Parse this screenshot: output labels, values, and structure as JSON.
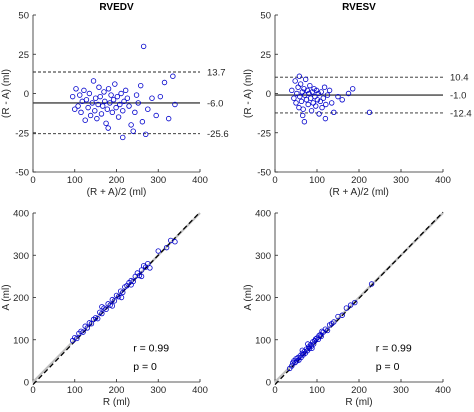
{
  "colors": {
    "points": "#0000cc",
    "axis": "#262626",
    "mean_line": "#404040",
    "identity_line": "#c0c0c0",
    "fit_line": "#000000"
  },
  "chart_data": [
    {
      "id": "rvedv-bland-altman",
      "type": "scatter",
      "title": "RVEDV",
      "xlabel": "(R + A)/2 (ml)",
      "ylabel": "(R - A) (ml)",
      "xlim": [
        0,
        400
      ],
      "ylim": [
        -50,
        50
      ],
      "xticks": [
        0,
        100,
        200,
        300,
        400
      ],
      "yticks": [
        -50,
        -25,
        0,
        25,
        50
      ],
      "hlines": [
        {
          "value": 13.7,
          "label": "13.7",
          "style": "dashed"
        },
        {
          "value": -6.0,
          "label": "-6.0",
          "style": "solid"
        },
        {
          "value": -25.6,
          "label": "-25.6",
          "style": "dashed"
        }
      ],
      "points": [
        [
          95,
          -2
        ],
        [
          100,
          -10
        ],
        [
          103,
          3
        ],
        [
          108,
          -8
        ],
        [
          112,
          -1
        ],
        [
          115,
          -12
        ],
        [
          118,
          -5
        ],
        [
          122,
          2
        ],
        [
          125,
          -17
        ],
        [
          128,
          -4
        ],
        [
          132,
          -9
        ],
        [
          135,
          0
        ],
        [
          138,
          -14
        ],
        [
          142,
          -6
        ],
        [
          145,
          8
        ],
        [
          148,
          -11
        ],
        [
          150,
          -3
        ],
        [
          153,
          -16
        ],
        [
          156,
          -7
        ],
        [
          158,
          4
        ],
        [
          161,
          -2
        ],
        [
          164,
          -13
        ],
        [
          167,
          -8
        ],
        [
          170,
          1
        ],
        [
          172,
          -5
        ],
        [
          175,
          -19
        ],
        [
          178,
          -10
        ],
        [
          181,
          3
        ],
        [
          184,
          -6
        ],
        [
          187,
          -1
        ],
        [
          190,
          -12
        ],
        [
          193,
          -4
        ],
        [
          196,
          6
        ],
        [
          199,
          -9
        ],
        [
          202,
          -2
        ],
        [
          205,
          -15
        ],
        [
          208,
          -7
        ],
        [
          211,
          0
        ],
        [
          215,
          -11
        ],
        [
          218,
          -5
        ],
        [
          222,
          2
        ],
        [
          226,
          -3
        ],
        [
          230,
          -8
        ],
        [
          235,
          -20
        ],
        [
          240,
          -24
        ],
        [
          244,
          -12
        ],
        [
          248,
          -1
        ],
        [
          252,
          -6
        ],
        [
          258,
          5
        ],
        [
          262,
          -18
        ],
        [
          265,
          30
        ],
        [
          270,
          -26
        ],
        [
          275,
          -10
        ],
        [
          285,
          -3
        ],
        [
          295,
          -14
        ],
        [
          305,
          -2
        ],
        [
          315,
          7
        ],
        [
          325,
          -16
        ],
        [
          335,
          11
        ],
        [
          340,
          -7
        ],
        [
          215,
          -28
        ],
        [
          180,
          -22
        ]
      ]
    },
    {
      "id": "rvesv-bland-altman",
      "type": "scatter",
      "title": "RVESV",
      "xlabel": "(R + A)/2 (ml)",
      "ylabel": "(R - A) (ml)",
      "xlim": [
        0,
        400
      ],
      "ylim": [
        -50,
        50
      ],
      "xticks": [
        0,
        100,
        200,
        300,
        400
      ],
      "yticks": [
        -50,
        -25,
        0,
        25,
        50
      ],
      "hlines": [
        {
          "value": 10.4,
          "label": "10.4",
          "style": "dashed"
        },
        {
          "value": -1.0,
          "label": "-1.0",
          "style": "solid"
        },
        {
          "value": -12.4,
          "label": "-12.4",
          "style": "dashed"
        }
      ],
      "points": [
        [
          40,
          2
        ],
        [
          45,
          -3
        ],
        [
          48,
          8
        ],
        [
          50,
          -6
        ],
        [
          52,
          0
        ],
        [
          55,
          4
        ],
        [
          57,
          -9
        ],
        [
          59,
          -2
        ],
        [
          61,
          6
        ],
        [
          63,
          -5
        ],
        [
          65,
          1
        ],
        [
          67,
          -10
        ],
        [
          69,
          3
        ],
        [
          71,
          -1
        ],
        [
          73,
          9
        ],
        [
          75,
          -4
        ],
        [
          77,
          2
        ],
        [
          79,
          -7
        ],
        [
          81,
          0
        ],
        [
          83,
          5
        ],
        [
          85,
          -3
        ],
        [
          87,
          -11
        ],
        [
          89,
          1
        ],
        [
          91,
          -6
        ],
        [
          93,
          3
        ],
        [
          95,
          -2
        ],
        [
          97,
          -8
        ],
        [
          99,
          2
        ],
        [
          101,
          -4
        ],
        [
          103,
          0
        ],
        [
          105,
          -13
        ],
        [
          108,
          -5
        ],
        [
          110,
          1
        ],
        [
          112,
          -9
        ],
        [
          115,
          -3
        ],
        [
          118,
          4
        ],
        [
          121,
          -7
        ],
        [
          125,
          -1
        ],
        [
          130,
          2
        ],
        [
          135,
          -6
        ],
        [
          140,
          -12
        ],
        [
          150,
          -2
        ],
        [
          160,
          -4
        ],
        [
          175,
          0
        ],
        [
          185,
          3
        ],
        [
          225,
          -12
        ],
        [
          58,
          11
        ],
        [
          66,
          -14
        ],
        [
          120,
          -16
        ],
        [
          70,
          -18
        ]
      ]
    },
    {
      "id": "rvedv-correlation",
      "type": "scatter",
      "title": "",
      "xlabel": "R (ml)",
      "ylabel": "A (ml)",
      "xlim": [
        0,
        400
      ],
      "ylim": [
        0,
        400
      ],
      "xticks": [
        0,
        100,
        200,
        300,
        400
      ],
      "yticks": [
        0,
        100,
        200,
        300,
        400
      ],
      "lines": [
        "identity",
        "fit"
      ],
      "stats": {
        "r": "r = 0.99",
        "p": "p = 0"
      },
      "points": [
        [
          95,
          98
        ],
        [
          100,
          105
        ],
        [
          105,
          103
        ],
        [
          110,
          115
        ],
        [
          115,
          120
        ],
        [
          120,
          118
        ],
        [
          125,
          132
        ],
        [
          130,
          128
        ],
        [
          135,
          140
        ],
        [
          140,
          138
        ],
        [
          145,
          148
        ],
        [
          150,
          152
        ],
        [
          155,
          150
        ],
        [
          160,
          165
        ],
        [
          165,
          162
        ],
        [
          170,
          175
        ],
        [
          175,
          172
        ],
        [
          180,
          185
        ],
        [
          185,
          182
        ],
        [
          190,
          195
        ],
        [
          195,
          192
        ],
        [
          200,
          205
        ],
        [
          205,
          202
        ],
        [
          210,
          215
        ],
        [
          215,
          212
        ],
        [
          220,
          225
        ],
        [
          225,
          228
        ],
        [
          230,
          235
        ],
        [
          235,
          240
        ],
        [
          240,
          238
        ],
        [
          245,
          250
        ],
        [
          250,
          258
        ],
        [
          255,
          252
        ],
        [
          260,
          265
        ],
        [
          265,
          275
        ],
        [
          270,
          272
        ],
        [
          275,
          280
        ],
        [
          280,
          270
        ],
        [
          300,
          310
        ],
        [
          320,
          318
        ],
        [
          330,
          335
        ],
        [
          340,
          332
        ],
        [
          165,
          178
        ],
        [
          190,
          180
        ],
        [
          212,
          200
        ],
        [
          235,
          230
        ],
        [
          260,
          250
        ]
      ]
    },
    {
      "id": "rvesv-correlation",
      "type": "scatter",
      "title": "",
      "xlabel": "R (ml)",
      "ylabel": "A (ml)",
      "xlim": [
        0,
        400
      ],
      "ylim": [
        0,
        400
      ],
      "xticks": [
        0,
        100,
        200,
        300,
        400
      ],
      "yticks": [
        0,
        100,
        200,
        300,
        400
      ],
      "lines": [
        "identity",
        "fit"
      ],
      "stats": {
        "r": "r = 0.99",
        "p": "p = 0"
      },
      "points": [
        [
          35,
          32
        ],
        [
          40,
          38
        ],
        [
          42,
          45
        ],
        [
          45,
          50
        ],
        [
          48,
          46
        ],
        [
          50,
          55
        ],
        [
          52,
          50
        ],
        [
          55,
          58
        ],
        [
          57,
          52
        ],
        [
          60,
          62
        ],
        [
          62,
          58
        ],
        [
          65,
          68
        ],
        [
          67,
          64
        ],
        [
          70,
          72
        ],
        [
          72,
          68
        ],
        [
          75,
          78
        ],
        [
          77,
          74
        ],
        [
          80,
          83
        ],
        [
          82,
          79
        ],
        [
          85,
          88
        ],
        [
          87,
          85
        ],
        [
          90,
          95
        ],
        [
          92,
          90
        ],
        [
          95,
          98
        ],
        [
          97,
          102
        ],
        [
          100,
          104
        ],
        [
          103,
          101
        ],
        [
          105,
          110
        ],
        [
          108,
          112
        ],
        [
          110,
          108
        ],
        [
          115,
          118
        ],
        [
          120,
          125
        ],
        [
          125,
          122
        ],
        [
          130,
          135
        ],
        [
          135,
          138
        ],
        [
          140,
          142
        ],
        [
          150,
          155
        ],
        [
          160,
          158
        ],
        [
          170,
          175
        ],
        [
          180,
          182
        ],
        [
          190,
          188
        ],
        [
          230,
          232
        ],
        [
          65,
          75
        ],
        [
          88,
          80
        ],
        [
          112,
          120
        ],
        [
          78,
          90
        ]
      ]
    }
  ]
}
